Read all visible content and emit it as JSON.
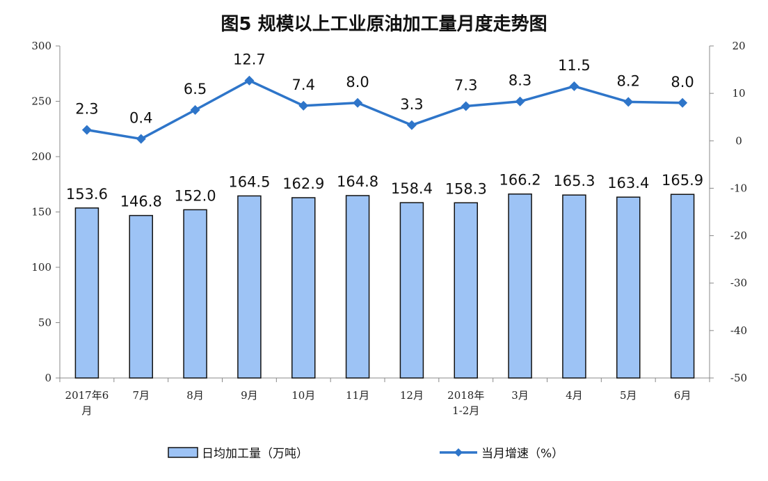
{
  "chart_data": {
    "type": "bar+line",
    "title": "图5  规模以上工业原油加工量月度走势图",
    "categories": [
      "2017年6月",
      "7月",
      "8月",
      "9月",
      "10月",
      "11月",
      "12月",
      "2018年1-2月",
      "3月",
      "4月",
      "5月",
      "6月"
    ],
    "category_lines": [
      [
        "2017年6",
        "月"
      ],
      [
        "7月"
      ],
      [
        "8月"
      ],
      [
        "9月"
      ],
      [
        "10月"
      ],
      [
        "11月"
      ],
      [
        "12月"
      ],
      [
        "2018年",
        "1-2月"
      ],
      [
        "3月"
      ],
      [
        "4月"
      ],
      [
        "5月"
      ],
      [
        "6月"
      ]
    ],
    "series": [
      {
        "name": "日均加工量（万吨）",
        "type": "bar",
        "axis": "left",
        "values": [
          153.6,
          146.8,
          152.0,
          164.5,
          162.9,
          164.8,
          158.4,
          158.3,
          166.2,
          165.3,
          163.4,
          165.9
        ],
        "labels": [
          "153.6",
          "146.8",
          "152.0",
          "164.5",
          "162.9",
          "164.8",
          "158.4",
          "158.3",
          "166.2",
          "165.3",
          "163.4",
          "165.9"
        ],
        "color": "#9dc3f5",
        "stroke": "#111111"
      },
      {
        "name": "当月增速（%）",
        "type": "line",
        "axis": "right",
        "values": [
          2.3,
          0.4,
          6.5,
          12.7,
          7.4,
          8.0,
          3.3,
          7.3,
          8.3,
          11.5,
          8.2,
          8.0
        ],
        "labels": [
          "2.3",
          "0.4",
          "6.5",
          "12.7",
          "7.4",
          "8.0",
          "3.3",
          "7.3",
          "8.3",
          "11.5",
          "8.2",
          "8.0"
        ],
        "color": "#2e75c9"
      }
    ],
    "y_left": {
      "min": 0,
      "max": 300,
      "ticks": [
        "0",
        "50",
        "100",
        "150",
        "200",
        "250",
        "300"
      ]
    },
    "y_right": {
      "min": -50,
      "max": 20,
      "ticks": [
        "-50",
        "-40",
        "-30",
        "-20",
        "-10",
        "0",
        "10",
        "20"
      ]
    },
    "grid": false,
    "legend_position": "bottom"
  }
}
